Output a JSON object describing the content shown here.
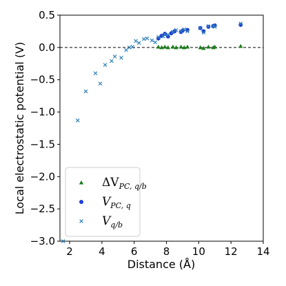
{
  "chart_data": {
    "type": "scatter",
    "xlabel": "Distance (Å)",
    "ylabel": "Local electrostatic potential (V)",
    "xlim": [
      1.4,
      14
    ],
    "ylim": [
      -3.0,
      0.5
    ],
    "xticks": [
      2,
      4,
      6,
      8,
      10,
      12,
      14
    ],
    "yticks": [
      0.5,
      0.0,
      -0.5,
      -1.0,
      -1.5,
      -2.0,
      -2.5,
      -3.0
    ],
    "xtick_labels": [
      "2",
      "4",
      "6",
      "8",
      "10",
      "12",
      "14"
    ],
    "ytick_labels": [
      "0.5",
      "0.0",
      "−0.5",
      "−1.0",
      "−1.5",
      "−2.0",
      "−2.5",
      "−3.0"
    ],
    "reference_line": {
      "y": 0.0,
      "style": "dashed",
      "color": "#000000"
    },
    "legend_position": "lower-left",
    "series": [
      {
        "name": "ΔV",
        "name_subscript": "PC, q/b",
        "marker": "triangle",
        "color": "#1e7d1e",
        "points": [
          [
            7.5,
            0.01
          ],
          [
            7.7,
            0.0
          ],
          [
            7.9,
            0.01
          ],
          [
            8.1,
            0.0
          ],
          [
            8.4,
            0.01
          ],
          [
            8.6,
            0.0
          ],
          [
            8.9,
            0.01
          ],
          [
            9.1,
            0.0
          ],
          [
            9.3,
            0.01
          ],
          [
            10.1,
            0.0
          ],
          [
            10.3,
            -0.01
          ],
          [
            10.6,
            0.01
          ],
          [
            10.9,
            0.0
          ],
          [
            11.0,
            0.01
          ],
          [
            12.6,
            0.02
          ]
        ]
      },
      {
        "name": "V",
        "name_subscript": "PC, q",
        "marker": "circle",
        "color": "#1f3fd6",
        "points": [
          [
            7.5,
            0.14
          ],
          [
            7.7,
            0.18
          ],
          [
            7.9,
            0.21
          ],
          [
            8.1,
            0.17
          ],
          [
            8.3,
            0.22
          ],
          [
            8.5,
            0.25
          ],
          [
            8.9,
            0.24
          ],
          [
            9.0,
            0.26
          ],
          [
            9.3,
            0.27
          ],
          [
            10.1,
            0.3
          ],
          [
            10.3,
            0.25
          ],
          [
            10.6,
            0.32
          ],
          [
            10.9,
            0.33
          ],
          [
            11.0,
            0.34
          ],
          [
            12.6,
            0.35
          ]
        ]
      },
      {
        "name": "V",
        "name_subscript": "q/b",
        "marker": "x",
        "color": "#2f7fb8",
        "points": [
          [
            1.6,
            -3.0
          ],
          [
            2.5,
            -1.13
          ],
          [
            3.0,
            -0.68
          ],
          [
            3.6,
            -0.4
          ],
          [
            3.9,
            -0.56
          ],
          [
            4.2,
            -0.27
          ],
          [
            4.6,
            -0.21
          ],
          [
            4.8,
            -0.14
          ],
          [
            5.2,
            -0.16
          ],
          [
            5.5,
            -0.04
          ],
          [
            5.7,
            0.0
          ],
          [
            5.9,
            0.01
          ],
          [
            6.1,
            0.1
          ],
          [
            6.3,
            0.07
          ],
          [
            6.6,
            0.13
          ],
          [
            6.8,
            0.14
          ],
          [
            7.1,
            0.11
          ],
          [
            7.3,
            0.08
          ],
          [
            7.5,
            0.16
          ],
          [
            7.8,
            0.17
          ],
          [
            7.9,
            0.2
          ],
          [
            8.1,
            0.2
          ],
          [
            8.4,
            0.24
          ],
          [
            8.6,
            0.27
          ],
          [
            8.9,
            0.25
          ],
          [
            9.1,
            0.28
          ],
          [
            9.3,
            0.25
          ],
          [
            10.1,
            0.3
          ],
          [
            10.3,
            0.23
          ],
          [
            10.6,
            0.33
          ],
          [
            10.9,
            0.33
          ],
          [
            11.0,
            0.32
          ],
          [
            12.6,
            0.37
          ]
        ]
      }
    ]
  }
}
